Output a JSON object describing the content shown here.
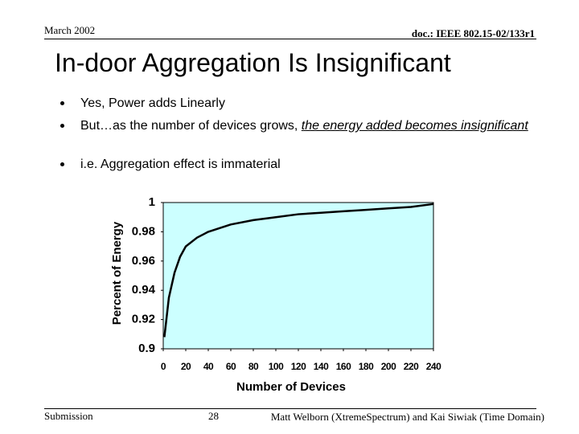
{
  "header": {
    "date": "March 2002",
    "doc": "doc.: IEEE 802.15-02/133r1"
  },
  "title": "In-door Aggregation Is Insignificant",
  "bullets": [
    {
      "text": "Yes, Power adds Linearly"
    },
    {
      "text": "But…as the number of devices grows, ",
      "emphasis": "the energy added becomes insignificant"
    },
    {
      "text": "i.e. Aggregation effect is immaterial"
    }
  ],
  "chart_data": {
    "type": "line",
    "x_label": "Number of Devices",
    "y_label": "Percent of Energy",
    "x": [
      1,
      5,
      10,
      15,
      20,
      30,
      40,
      60,
      80,
      100,
      120,
      140,
      160,
      180,
      200,
      220,
      240
    ],
    "values": [
      0.908,
      0.935,
      0.952,
      0.963,
      0.97,
      0.976,
      0.98,
      0.985,
      0.988,
      0.99,
      0.992,
      0.993,
      0.994,
      0.995,
      0.996,
      0.997,
      0.999
    ],
    "color": "#000000",
    "background": "#ccffff",
    "xlim": [
      0,
      240
    ],
    "xticks": [
      0,
      20,
      40,
      60,
      80,
      100,
      120,
      140,
      160,
      180,
      200,
      220,
      240
    ],
    "ylim": [
      0.9,
      1
    ],
    "yticks": [
      0.9,
      0.92,
      0.94,
      0.96,
      0.98,
      1
    ],
    "grid": false
  },
  "footer": {
    "left": "Submission",
    "page": "28",
    "right": "Matt Welborn (XtremeSpectrum) and Kai Siwiak (Time Domain)"
  }
}
